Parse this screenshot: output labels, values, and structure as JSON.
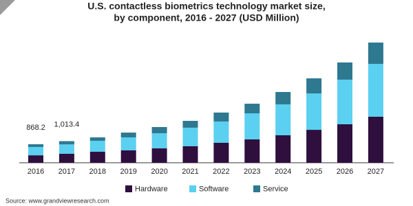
{
  "chart_data": {
    "type": "stacked_bar",
    "title": [
      "U.S. contactless biometrics technology market size,",
      "by component, 2016 - 2027 (USD Million)"
    ],
    "categories": [
      "2016",
      "2017",
      "2018",
      "2019",
      "2020",
      "2021",
      "2022",
      "2023",
      "2024",
      "2025",
      "2026",
      "2027"
    ],
    "series": [
      {
        "name": "Hardware",
        "color": "#2e0f3d",
        "values": [
          350,
          420,
          515,
          580,
          675,
          775,
          935,
          1095,
          1290,
          1545,
          1805,
          2160
        ]
      },
      {
        "name": "Software",
        "color": "#5bd0f0",
        "values": [
          390,
          440,
          515,
          610,
          710,
          870,
          1000,
          1225,
          1450,
          1705,
          2095,
          2480
        ]
      },
      {
        "name": "Service",
        "color": "#2e7890",
        "values": [
          128.2,
          153.4,
          160,
          225,
          290,
          320,
          420,
          450,
          580,
          710,
          805,
          1000
        ]
      }
    ],
    "totals": {
      "values": [
        868.2,
        1013.4
      ],
      "value_labels": [
        "868.2",
        "1,013.4"
      ]
    },
    "ylim": [
      0,
      5800
    ],
    "source": "Source: www.grandviewresearch.com"
  }
}
